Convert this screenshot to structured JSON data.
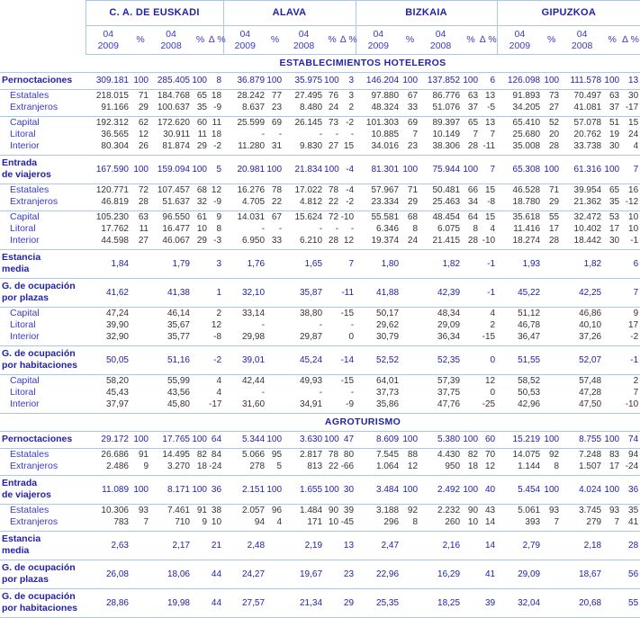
{
  "colors": {
    "accent": "#2222a8",
    "label_blue": "#3a3ac8",
    "number": "#333333",
    "rule_line": "#aac8e8"
  },
  "table": {
    "groups": [
      {
        "name": "C. A. DE EUSKADI"
      },
      {
        "name": "ALAVA"
      },
      {
        "name": "BIZKAIA"
      },
      {
        "name": "GIPUZKOA"
      }
    ],
    "subcolumns": [
      [
        "04",
        "2009"
      ],
      [
        "%"
      ],
      [
        "04",
        "2008"
      ],
      [
        "%"
      ],
      [
        "∆ %"
      ]
    ],
    "sections": [
      {
        "title": "ESTABLECIMIENTOS HOTELEROS",
        "rows": [
          {
            "label": "Pernoctaciones",
            "bold": true,
            "rule": true,
            "cells": [
              "309.181",
              "100",
              "285.405",
              "100",
              "8",
              "36.879",
              "100",
              "35.975",
              "100",
              "3",
              "146.204",
              "100",
              "137.852",
              "100",
              "6",
              "126.098",
              "100",
              "111.578",
              "100",
              "13"
            ]
          },
          {
            "label": "Estatales",
            "cells": [
              "218.015",
              "71",
              "184.768",
              "65",
              "18",
              "28.242",
              "77",
              "27.495",
              "76",
              "3",
              "97.880",
              "67",
              "86.776",
              "63",
              "13",
              "91.893",
              "73",
              "70.497",
              "63",
              "30"
            ]
          },
          {
            "label": "Extranjeros",
            "rule": true,
            "cells": [
              "91.166",
              "29",
              "100.637",
              "35",
              "-9",
              "8.637",
              "23",
              "8.480",
              "24",
              "2",
              "48.324",
              "33",
              "51.076",
              "37",
              "-5",
              "34.205",
              "27",
              "41.081",
              "37",
              "-17"
            ]
          },
          {
            "label": "Capital",
            "cells": [
              "192.312",
              "62",
              "172.620",
              "60",
              "11",
              "25.599",
              "69",
              "26.145",
              "73",
              "-2",
              "101.303",
              "69",
              "89.397",
              "65",
              "13",
              "65.410",
              "52",
              "57.078",
              "51",
              "15"
            ]
          },
          {
            "label": "Litoral",
            "cells": [
              "36.565",
              "12",
              "30.911",
              "11",
              "18",
              "-",
              "-",
              "-",
              "-",
              "-",
              "10.885",
              "7",
              "10.149",
              "7",
              "7",
              "25.680",
              "20",
              "20.762",
              "19",
              "24"
            ]
          },
          {
            "label": "Interior",
            "rule": true,
            "cells": [
              "80.304",
              "26",
              "81.874",
              "29",
              "-2",
              "11.280",
              "31",
              "9.830",
              "27",
              "15",
              "34.016",
              "23",
              "38.306",
              "28",
              "-11",
              "35.008",
              "28",
              "33.738",
              "30",
              "4"
            ]
          },
          {
            "label": "Entrada|de viajeros",
            "bold": true,
            "rule": true,
            "cells": [
              "167.590",
              "100",
              "159.094",
              "100",
              "5",
              "20.981",
              "100",
              "21.834",
              "100",
              "-4",
              "81.301",
              "100",
              "75.944",
              "100",
              "7",
              "65.308",
              "100",
              "61.316",
              "100",
              "7"
            ]
          },
          {
            "label": "Estatales",
            "cells": [
              "120.771",
              "72",
              "107.457",
              "68",
              "12",
              "16.276",
              "78",
              "17.022",
              "78",
              "-4",
              "57.967",
              "71",
              "50.481",
              "66",
              "15",
              "46.528",
              "71",
              "39.954",
              "65",
              "16"
            ]
          },
          {
            "label": "Extranjeros",
            "rule": true,
            "cells": [
              "46.819",
              "28",
              "51.637",
              "32",
              "-9",
              "4.705",
              "22",
              "4.812",
              "22",
              "-2",
              "23.334",
              "29",
              "25.463",
              "34",
              "-8",
              "18.780",
              "29",
              "21.362",
              "35",
              "-12"
            ]
          },
          {
            "label": "Capital",
            "cells": [
              "105.230",
              "63",
              "96.550",
              "61",
              "9",
              "14.031",
              "67",
              "15.624",
              "72",
              "-10",
              "55.581",
              "68",
              "48.454",
              "64",
              "15",
              "35.618",
              "55",
              "32.472",
              "53",
              "10"
            ]
          },
          {
            "label": "Litoral",
            "cells": [
              "17.762",
              "11",
              "16.477",
              "10",
              "8",
              "-",
              "-",
              "-",
              "-",
              "-",
              "6.346",
              "8",
              "6.075",
              "8",
              "4",
              "11.416",
              "17",
              "10.402",
              "17",
              "10"
            ]
          },
          {
            "label": "Interior",
            "rule": true,
            "cells": [
              "44.598",
              "27",
              "46.067",
              "29",
              "-3",
              "6.950",
              "33",
              "6.210",
              "28",
              "12",
              "19.374",
              "24",
              "21.415",
              "28",
              "-10",
              "18.274",
              "28",
              "18.442",
              "30",
              "-1"
            ]
          },
          {
            "label": "Estancia|media",
            "bold": true,
            "rule": true,
            "cells": [
              "1,84",
              "",
              "1,79",
              "",
              "3",
              "1,76",
              "",
              "1,65",
              "",
              "7",
              "1,80",
              "",
              "1,82",
              "",
              "-1",
              "1,93",
              "",
              "1,82",
              "",
              "6"
            ]
          },
          {
            "label": "G. de ocupación|por plazas",
            "bold": true,
            "rule": true,
            "cells": [
              "41,62",
              "",
              "41,38",
              "",
              "1",
              "32,10",
              "",
              "35,87",
              "",
              "-11",
              "41,88",
              "",
              "42,39",
              "",
              "-1",
              "45,22",
              "",
              "42,25",
              "",
              "7"
            ]
          },
          {
            "label": "Capital",
            "cells": [
              "47,24",
              "",
              "46,14",
              "",
              "2",
              "33,14",
              "",
              "38,80",
              "",
              "-15",
              "50,17",
              "",
              "48,34",
              "",
              "4",
              "51,12",
              "",
              "46,86",
              "",
              "9"
            ]
          },
          {
            "label": "Litoral",
            "cells": [
              "39,90",
              "",
              "35,67",
              "",
              "12",
              "-",
              "",
              "-",
              "",
              "-",
              "29,62",
              "",
              "29,09",
              "",
              "2",
              "46,78",
              "",
              "40,10",
              "",
              "17"
            ]
          },
          {
            "label": "Interior",
            "rule": true,
            "cells": [
              "32,90",
              "",
              "35,77",
              "",
              "-8",
              "29,98",
              "",
              "29,87",
              "",
              "0",
              "30,79",
              "",
              "36,34",
              "",
              "-15",
              "36,47",
              "",
              "37,26",
              "",
              "-2"
            ]
          },
          {
            "label": "G. de ocupación|por habitaciones",
            "bold": true,
            "rule": true,
            "cells": [
              "50,05",
              "",
              "51,16",
              "",
              "-2",
              "39,01",
              "",
              "45,24",
              "",
              "-14",
              "52,52",
              "",
              "52,35",
              "",
              "0",
              "51,55",
              "",
              "52,07",
              "",
              "-1"
            ]
          },
          {
            "label": "Capital",
            "cells": [
              "58,20",
              "",
              "55,99",
              "",
              "4",
              "42,44",
              "",
              "49,93",
              "",
              "-15",
              "64,01",
              "",
              "57,39",
              "",
              "12",
              "58,52",
              "",
              "57,48",
              "",
              "2"
            ]
          },
          {
            "label": "Litoral",
            "cells": [
              "45,43",
              "",
              "43,56",
              "",
              "4",
              "-",
              "",
              "-",
              "",
              "-",
              "37,73",
              "",
              "37,75",
              "",
              "0",
              "50,53",
              "",
              "47,28",
              "",
              "7"
            ]
          },
          {
            "label": "Interior",
            "rule": true,
            "cells": [
              "37,97",
              "",
              "45,80",
              "",
              "-17",
              "31,60",
              "",
              "34,91",
              "",
              "-9",
              "35,86",
              "",
              "47,76",
              "",
              "-25",
              "42,96",
              "",
              "47,50",
              "",
              "-10"
            ]
          }
        ]
      },
      {
        "title": "AGROTURISMO",
        "rows": [
          {
            "label": "Pernoctaciones",
            "bold": true,
            "rule": true,
            "cells": [
              "29.172",
              "100",
              "17.765",
              "100",
              "64",
              "5.344",
              "100",
              "3.630",
              "100",
              "47",
              "8.609",
              "100",
              "5.380",
              "100",
              "60",
              "15.219",
              "100",
              "8.755",
              "100",
              "74"
            ]
          },
          {
            "label": "Estatales",
            "cells": [
              "26.686",
              "91",
              "14.495",
              "82",
              "84",
              "5.066",
              "95",
              "2.817",
              "78",
              "80",
              "7.545",
              "88",
              "4.430",
              "82",
              "70",
              "14.075",
              "92",
              "7.248",
              "83",
              "94"
            ]
          },
          {
            "label": "Extranjeros",
            "rule": true,
            "cells": [
              "2.486",
              "9",
              "3.270",
              "18",
              "-24",
              "278",
              "5",
              "813",
              "22",
              "-66",
              "1.064",
              "12",
              "950",
              "18",
              "12",
              "1.144",
              "8",
              "1.507",
              "17",
              "-24"
            ]
          },
          {
            "label": "Entrada|de viajeros",
            "bold": true,
            "rule": true,
            "cells": [
              "11.089",
              "100",
              "8.171",
              "100",
              "36",
              "2.151",
              "100",
              "1.655",
              "100",
              "30",
              "3.484",
              "100",
              "2.492",
              "100",
              "40",
              "5.454",
              "100",
              "4.024",
              "100",
              "36"
            ]
          },
          {
            "label": "Estatales",
            "cells": [
              "10.306",
              "93",
              "7.461",
              "91",
              "38",
              "2.057",
              "96",
              "1.484",
              "90",
              "39",
              "3.188",
              "92",
              "2.232",
              "90",
              "43",
              "5.061",
              "93",
              "3.745",
              "93",
              "35"
            ]
          },
          {
            "label": "Extranjeros",
            "rule": true,
            "cells": [
              "783",
              "7",
              "710",
              "9",
              "10",
              "94",
              "4",
              "171",
              "10",
              "-45",
              "296",
              "8",
              "260",
              "10",
              "14",
              "393",
              "7",
              "279",
              "7",
              "41"
            ]
          },
          {
            "label": "Estancia|media",
            "bold": true,
            "rule": true,
            "cells": [
              "2,63",
              "",
              "2,17",
              "",
              "21",
              "2,48",
              "",
              "2,19",
              "",
              "13",
              "2,47",
              "",
              "2,16",
              "",
              "14",
              "2,79",
              "",
              "2,18",
              "",
              "28"
            ]
          },
          {
            "label": "G. de ocupación|por plazas",
            "bold": true,
            "rule": true,
            "cells": [
              "26,08",
              "",
              "18,06",
              "",
              "44",
              "24,27",
              "",
              "19,67",
              "",
              "23",
              "22,96",
              "",
              "16,29",
              "",
              "41",
              "29,09",
              "",
              "18,67",
              "",
              "56"
            ]
          },
          {
            "label": "G. de ocupación|por habitaciones",
            "bold": true,
            "rule": true,
            "cells": [
              "28,86",
              "",
              "19,98",
              "",
              "44",
              "27,57",
              "",
              "21,34",
              "",
              "29",
              "25,35",
              "",
              "18,25",
              "",
              "39",
              "32,04",
              "",
              "20,68",
              "",
              "55"
            ]
          }
        ]
      }
    ]
  }
}
